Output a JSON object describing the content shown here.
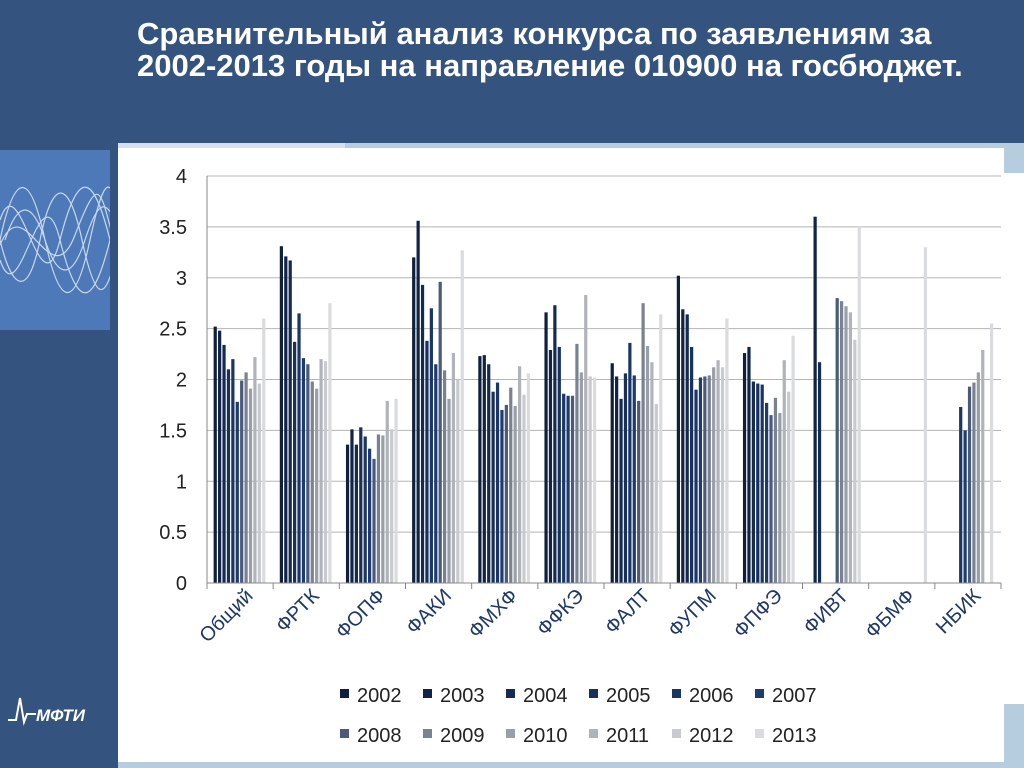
{
  "slide": {
    "title": "Сравнительный анализ конкурса по заявлениям за 2002-2013 годы на направление 010900 на госбюджет.",
    "logo_text": "МФТИ"
  },
  "colors": {
    "header_bg": "#34537f",
    "strip_light": "#b6cde0"
  },
  "chart_data": {
    "type": "bar",
    "title": "",
    "xlabel": "",
    "ylabel": "",
    "ylim": [
      0,
      4
    ],
    "yticks": [
      0,
      0.5,
      1,
      1.5,
      2,
      2.5,
      3,
      3.5,
      4
    ],
    "grid": "horizontal",
    "legend_position": "bottom",
    "categories": [
      "Общий",
      "ФРТК",
      "ФОПФ",
      "ФАКИ",
      "ФМХФ",
      "ФФКЭ",
      "ФАЛТ",
      "ФУПМ",
      "ФПФЭ",
      "ФИВТ",
      "ФБМФ",
      "НБИК"
    ],
    "series": [
      {
        "name": "2002",
        "color": "#0f1f3e",
        "values": [
          2.52,
          3.31,
          1.36,
          3.2,
          2.23,
          2.66,
          2.16,
          3.02,
          2.26,
          null,
          null,
          null
        ]
      },
      {
        "name": "2003",
        "color": "#112447",
        "values": [
          2.48,
          3.21,
          1.51,
          3.56,
          2.24,
          2.29,
          2.03,
          2.69,
          2.32,
          3.6,
          null,
          null
        ]
      },
      {
        "name": "2004",
        "color": "#132a53",
        "values": [
          2.34,
          3.17,
          1.36,
          2.93,
          2.15,
          2.73,
          1.81,
          2.64,
          1.98,
          2.17,
          null,
          null
        ]
      },
      {
        "name": "2005",
        "color": "#17305c",
        "values": [
          2.1,
          2.37,
          1.53,
          2.38,
          1.88,
          2.32,
          2.06,
          2.32,
          1.96,
          null,
          null,
          null
        ]
      },
      {
        "name": "2006",
        "color": "#1a3665",
        "values": [
          2.2,
          2.65,
          1.44,
          2.7,
          1.97,
          1.86,
          2.36,
          1.9,
          1.95,
          null,
          null,
          1.73
        ]
      },
      {
        "name": "2007",
        "color": "#1d3b6e",
        "values": [
          1.78,
          2.21,
          1.32,
          2.15,
          1.7,
          1.84,
          2.04,
          2.02,
          1.77,
          null,
          null,
          1.5
        ]
      },
      {
        "name": "2008",
        "color": "#4a5a78",
        "values": [
          1.99,
          2.15,
          1.22,
          2.96,
          1.75,
          1.84,
          1.79,
          2.03,
          1.65,
          2.8,
          null,
          1.93
        ]
      },
      {
        "name": "2009",
        "color": "#7a8291",
        "values": [
          2.07,
          1.98,
          1.46,
          2.09,
          1.92,
          2.35,
          2.75,
          2.04,
          1.82,
          2.77,
          null,
          1.97
        ]
      },
      {
        "name": "2010",
        "color": "#9a9ea7",
        "values": [
          1.91,
          1.91,
          1.45,
          1.81,
          1.74,
          2.07,
          2.33,
          2.12,
          1.67,
          2.72,
          null,
          2.07
        ]
      },
      {
        "name": "2011",
        "color": "#b0b3ba",
        "values": [
          2.22,
          2.2,
          1.79,
          2.26,
          2.13,
          2.83,
          2.17,
          2.19,
          2.19,
          2.66,
          null,
          2.29
        ]
      },
      {
        "name": "2012",
        "color": "#c8cace",
        "values": [
          1.96,
          2.18,
          1.51,
          2.0,
          1.85,
          2.03,
          1.76,
          2.12,
          1.88,
          2.39,
          null,
          null
        ]
      },
      {
        "name": "2013",
        "color": "#d9dbde",
        "values": [
          2.6,
          2.75,
          1.81,
          3.27,
          2.06,
          2.02,
          2.64,
          2.6,
          2.43,
          3.5,
          3.3,
          2.55
        ]
      }
    ]
  }
}
